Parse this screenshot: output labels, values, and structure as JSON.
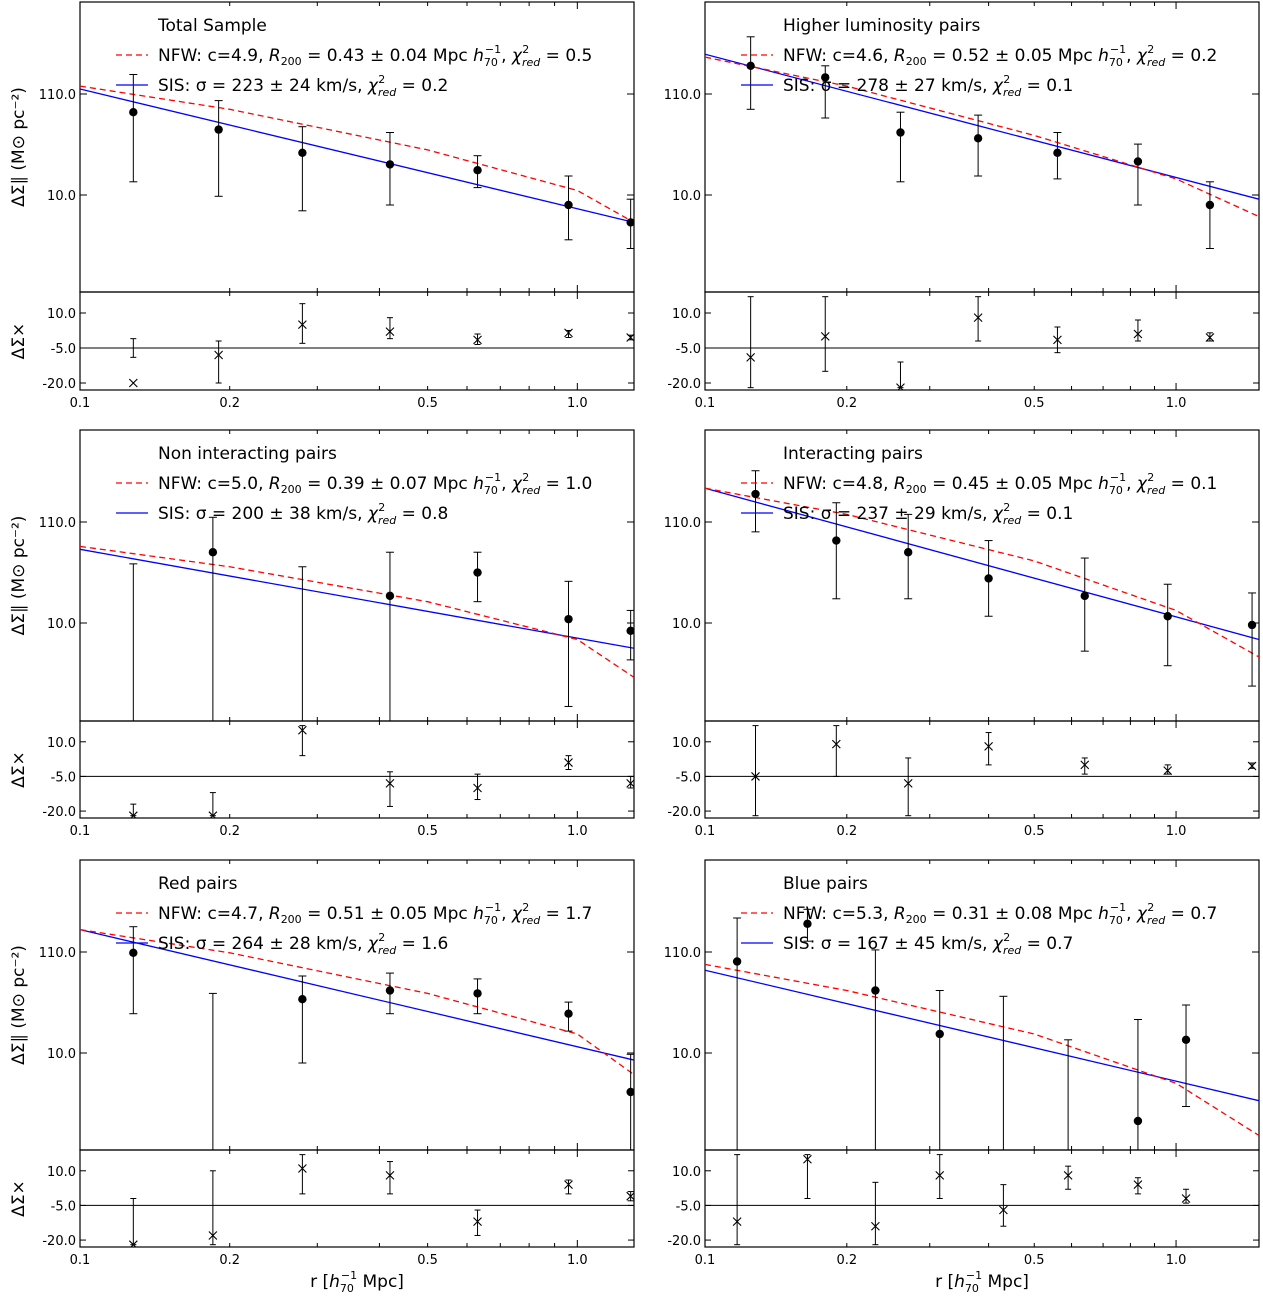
{
  "figure": {
    "xlabel_text": "r [",
    "xlabel_h": "h",
    "xlabel_sub": "70",
    "xlabel_sup": "−1",
    "xlabel_unit": " Mpc]",
    "main_ylabel": "ΔΣ∥ (M⊙ pc⁻²)",
    "cross_ylabel": "ΔΣ×"
  },
  "chart_data": [
    {
      "type": "scatter",
      "title": "Total Sample",
      "legend": [
        {
          "pre": "NFW: c=4.9, ",
          "r200": "R200",
          "mid": " = 0.43 ± 0.04 Mpc ",
          "h": "h70−1",
          "chi": ", χ²red = 0.5"
        },
        {
          "pre": "SIS: σ = 223 ± 24 km/s",
          "chi": ", χ²red = 0.2"
        }
      ],
      "legend_colors": [
        "#ff0000",
        "#0000ff"
      ],
      "xlim": [
        0.1,
        1.3
      ],
      "xscale": "log",
      "xticks": [
        0.1,
        0.2,
        0.5,
        1.0
      ],
      "xtick_labels": [
        "0.1",
        "0.2",
        "0.5",
        "1.0"
      ],
      "main_yticks": [
        "110.0",
        "10.0"
      ],
      "cross_yticks": [
        "10.0",
        "-5.0",
        "-20.0"
      ],
      "main": {
        "x": [
          0.128,
          0.19,
          0.28,
          0.42,
          0.63,
          0.96,
          1.28
        ],
        "y": [
          0.62,
          0.56,
          0.48,
          0.44,
          0.42,
          0.3,
          0.24
        ],
        "lo": [
          0.38,
          0.33,
          0.28,
          0.3,
          0.36,
          0.18,
          0.15
        ],
        "hi": [
          0.75,
          0.66,
          0.57,
          0.55,
          0.47,
          0.4,
          0.32
        ]
      },
      "sis": [
        [
          0.1,
          0.7
        ],
        [
          1.3,
          0.24
        ]
      ],
      "nfw": [
        [
          0.1,
          0.71
        ],
        [
          0.2,
          0.63
        ],
        [
          0.5,
          0.49
        ],
        [
          1.0,
          0.35
        ],
        [
          1.3,
          0.24
        ]
      ],
      "cross": {
        "x": [
          0.128,
          0.19,
          0.28,
          0.42,
          0.63,
          0.96,
          1.28
        ],
        "y": [
          -20,
          -8,
          5,
          2,
          -1.5,
          1.5,
          -0.5
        ],
        "lo": [
          -9,
          -20,
          -3,
          -1,
          -3.5,
          -0.5,
          -1.5
        ],
        "hi": [
          -1,
          -2,
          14,
          8,
          1,
          2.5,
          0.5
        ]
      }
    },
    {
      "type": "scatter",
      "title": "Higher luminosity pairs",
      "legend": [
        {
          "pre": "NFW: c=4.6, ",
          "r200": "R200",
          "mid": " = 0.52 ± 0.05 Mpc ",
          "h": "h70−1",
          "chi": ", χ²red = 0.2"
        },
        {
          "pre": "SIS: σ = 278 ± 27 km/s",
          "chi": ", χ²red = 0.1"
        }
      ],
      "legend_colors": [
        "#ff0000",
        "#0000ff"
      ],
      "xlim": [
        0.1,
        1.5
      ],
      "xscale": "log",
      "xticks": [
        0.1,
        0.2,
        0.5,
        1.0
      ],
      "xtick_labels": [
        "0.1",
        "0.2",
        "0.5",
        "1.0"
      ],
      "main_yticks": [
        "110.0",
        "10.0"
      ],
      "cross_yticks": [
        "10.0",
        "-5.0",
        "-20.0"
      ],
      "main": {
        "x": [
          0.125,
          0.18,
          0.26,
          0.38,
          0.56,
          0.83,
          1.18
        ],
        "y": [
          0.78,
          0.74,
          0.55,
          0.53,
          0.48,
          0.45,
          0.3
        ],
        "lo": [
          0.63,
          0.6,
          0.38,
          0.4,
          0.39,
          0.3,
          0.15
        ],
        "hi": [
          0.88,
          0.78,
          0.62,
          0.61,
          0.55,
          0.51,
          0.38
        ]
      },
      "sis": [
        [
          0.1,
          0.82
        ],
        [
          1.5,
          0.32
        ]
      ],
      "nfw": [
        [
          0.1,
          0.81
        ],
        [
          0.2,
          0.71
        ],
        [
          0.5,
          0.54
        ],
        [
          1.0,
          0.39
        ],
        [
          1.5,
          0.26
        ]
      ],
      "cross": {
        "x": [
          0.125,
          0.18,
          0.26,
          0.38,
          0.56,
          0.83,
          1.18
        ],
        "y": [
          -9,
          0,
          -22,
          8,
          -1.5,
          1,
          -0.5
        ],
        "lo": [
          -22,
          -15,
          -22,
          -2,
          -7,
          -2,
          -2
        ],
        "hi": [
          17,
          17,
          -11,
          17,
          4,
          7,
          1.5
        ]
      }
    },
    {
      "type": "scatter",
      "title": "Non interacting pairs",
      "legend": [
        {
          "pre": "NFW: c=5.0, ",
          "r200": "R200",
          "mid": " = 0.39 ± 0.07 Mpc ",
          "h": "h70−1",
          "chi": ", χ²red = 1.0"
        },
        {
          "pre": "SIS: σ = 200 ± 38 km/s",
          "chi": ", χ²red = 0.8"
        }
      ],
      "legend_colors": [
        "#ff0000",
        "#0000ff"
      ],
      "xlim": [
        0.1,
        1.3
      ],
      "xscale": "log",
      "xticks": [
        0.1,
        0.2,
        0.5,
        1.0
      ],
      "xtick_labels": [
        "0.1",
        "0.2",
        "0.5",
        "1.0"
      ],
      "main_yticks": [
        "110.0",
        "10.0"
      ],
      "cross_yticks": [
        "10.0",
        "-5.0",
        "-20.0"
      ],
      "main": {
        "x": [
          0.128,
          0.185,
          0.28,
          0.42,
          0.63,
          0.96,
          1.28
        ],
        "y": [
          0.0,
          0.58,
          0.0,
          0.43,
          0.51,
          0.35,
          0.31
        ],
        "lo": [
          0.0,
          0.0,
          0.0,
          0.0,
          0.41,
          0.05,
          0.21
        ],
        "hi": [
          0.54,
          0.7,
          0.53,
          0.58,
          0.58,
          0.48,
          0.38
        ]
      },
      "sis": [
        [
          0.1,
          0.59
        ],
        [
          1.3,
          0.25
        ]
      ],
      "nfw": [
        [
          0.1,
          0.6
        ],
        [
          0.2,
          0.53
        ],
        [
          0.5,
          0.41
        ],
        [
          1.0,
          0.28
        ],
        [
          1.3,
          0.15
        ]
      ],
      "cross": {
        "x": [
          0.128,
          0.185,
          0.28,
          0.42,
          0.63,
          0.96,
          1.28
        ],
        "y": [
          -22,
          -22,
          15,
          -8,
          -10,
          1,
          -8
        ],
        "lo": [
          -22,
          -22,
          4,
          -18,
          -15,
          -2,
          -10
        ],
        "hi": [
          -17,
          -12,
          17,
          -3,
          -4,
          4,
          -5
        ]
      }
    },
    {
      "type": "scatter",
      "title": "Interacting pairs",
      "legend": [
        {
          "pre": "NFW: c=4.8, ",
          "r200": "R200",
          "mid": " = 0.45 ± 0.05 Mpc ",
          "h": "h70−1",
          "chi": ", χ²red = 0.1"
        },
        {
          "pre": "SIS: σ = 237 ± 29 km/s",
          "chi": ", χ²red = 0.1"
        }
      ],
      "legend_colors": [
        "#ff0000",
        "#0000ff"
      ],
      "xlim": [
        0.1,
        1.5
      ],
      "xscale": "log",
      "xticks": [
        0.1,
        0.2,
        0.5,
        1.0
      ],
      "xtick_labels": [
        "0.1",
        "0.2",
        "0.5",
        "1.0"
      ],
      "main_yticks": [
        "110.0",
        "10.0"
      ],
      "cross_yticks": [
        "10.0",
        "-5.0",
        "-20.0"
      ],
      "main": {
        "x": [
          0.128,
          0.19,
          0.27,
          0.4,
          0.64,
          0.96,
          1.45
        ],
        "y": [
          0.78,
          0.62,
          0.58,
          0.49,
          0.43,
          0.36,
          0.33
        ],
        "lo": [
          0.65,
          0.42,
          0.42,
          0.36,
          0.24,
          0.19,
          0.12
        ],
        "hi": [
          0.86,
          0.75,
          0.71,
          0.62,
          0.56,
          0.47,
          0.44
        ]
      },
      "sis": [
        [
          0.1,
          0.8
        ],
        [
          1.5,
          0.28
        ]
      ],
      "nfw": [
        [
          0.1,
          0.8
        ],
        [
          0.2,
          0.71
        ],
        [
          0.5,
          0.55
        ],
        [
          1.0,
          0.38
        ],
        [
          1.5,
          0.22
        ]
      ],
      "cross": {
        "x": [
          0.128,
          0.19,
          0.27,
          0.4,
          0.64,
          0.96,
          1.45
        ],
        "y": [
          -5,
          9,
          -8,
          8,
          0,
          -2.5,
          -0.5
        ],
        "lo": [
          -22,
          -5,
          -22,
          0,
          -4,
          -4,
          -1.5
        ],
        "hi": [
          17,
          17,
          3,
          14,
          3,
          0,
          0.8
        ]
      }
    },
    {
      "type": "scatter",
      "title": "Red pairs",
      "legend": [
        {
          "pre": "NFW: c=4.7, ",
          "r200": "R200",
          "mid": " = 0.51 ± 0.05 Mpc ",
          "h": "h70−1",
          "chi": ", χ²red = 1.7"
        },
        {
          "pre": "SIS: σ = 264 ± 28 km/s",
          "chi": ", χ²red = 1.6"
        }
      ],
      "legend_colors": [
        "#ff0000",
        "#0000ff"
      ],
      "xlim": [
        0.1,
        1.3
      ],
      "xscale": "log",
      "xticks": [
        0.1,
        0.2,
        0.5,
        1.0
      ],
      "xtick_labels": [
        "0.1",
        "0.2",
        "0.5",
        "1.0"
      ],
      "main_yticks": [
        "110.0",
        "10.0"
      ],
      "cross_yticks": [
        "10.0",
        "-5.0",
        "-20.0"
      ],
      "main": {
        "x": [
          0.128,
          0.185,
          0.28,
          0.42,
          0.63,
          0.96,
          1.28
        ],
        "y": [
          0.68,
          0.0,
          0.52,
          0.55,
          0.54,
          0.47,
          0.2
        ],
        "lo": [
          0.47,
          0.0,
          0.3,
          0.47,
          0.47,
          0.41,
          0.0
        ],
        "hi": [
          0.77,
          0.54,
          0.6,
          0.61,
          0.59,
          0.51,
          0.33
        ]
      },
      "sis": [
        [
          0.1,
          0.76
        ],
        [
          1.3,
          0.31
        ]
      ],
      "nfw": [
        [
          0.1,
          0.76
        ],
        [
          0.2,
          0.68
        ],
        [
          0.5,
          0.54
        ],
        [
          1.0,
          0.4
        ],
        [
          1.3,
          0.26
        ]
      ],
      "cross": {
        "x": [
          0.128,
          0.185,
          0.28,
          0.42,
          0.63,
          0.96,
          1.28
        ],
        "y": [
          -22,
          -18,
          11,
          8,
          -12,
          4,
          -1
        ],
        "lo": [
          -22,
          -22,
          0,
          0,
          -18,
          0,
          -3
        ],
        "hi": [
          -2,
          10,
          17,
          14,
          -7,
          6,
          1
        ]
      }
    },
    {
      "type": "scatter",
      "title": "Blue pairs",
      "legend": [
        {
          "pre": "NFW: c=5.3, ",
          "r200": "R200",
          "mid": " = 0.31 ± 0.08 Mpc ",
          "h": "h70−1",
          "chi": ", χ²red = 0.7"
        },
        {
          "pre": "SIS: σ = 167 ± 45 km/s",
          "chi": ", χ²red = 0.7"
        }
      ],
      "legend_colors": [
        "#ff0000",
        "#0000ff"
      ],
      "xlim": [
        0.1,
        1.5
      ],
      "xscale": "log",
      "xticks": [
        0.1,
        0.2,
        0.5,
        1.0
      ],
      "xtick_labels": [
        "0.1",
        "0.2",
        "0.5",
        "1.0"
      ],
      "main_yticks": [
        "110.0",
        "10.0"
      ],
      "cross_yticks": [
        "10.0",
        "-5.0",
        "-20.0"
      ],
      "main": {
        "x": [
          0.117,
          0.165,
          0.23,
          0.315,
          0.43,
          0.59,
          0.83,
          1.05
        ],
        "y": [
          0.65,
          0.78,
          0.55,
          0.4,
          0.0,
          0.0,
          0.1,
          0.38
        ],
        "lo": [
          0.0,
          0.72,
          0.0,
          0.0,
          0.0,
          0.0,
          0.0,
          0.15
        ],
        "hi": [
          0.8,
          0.83,
          0.69,
          0.55,
          0.53,
          0.38,
          0.45,
          0.5
        ]
      },
      "sis": [
        [
          0.1,
          0.62
        ],
        [
          1.5,
          0.17
        ]
      ],
      "nfw": [
        [
          0.1,
          0.64
        ],
        [
          0.2,
          0.55
        ],
        [
          0.5,
          0.4
        ],
        [
          1.0,
          0.23
        ],
        [
          1.5,
          0.05
        ]
      ],
      "cross": {
        "x": [
          0.117,
          0.165,
          0.23,
          0.315,
          0.43,
          0.59,
          0.83,
          1.05
        ],
        "y": [
          -12,
          15,
          -14,
          8,
          -7,
          8,
          4,
          -2
        ],
        "lo": [
          -22,
          -2,
          -22,
          -2,
          -14,
          2,
          0,
          -4
        ],
        "hi": [
          17,
          17,
          5,
          17,
          4,
          12,
          7,
          2
        ]
      }
    }
  ]
}
